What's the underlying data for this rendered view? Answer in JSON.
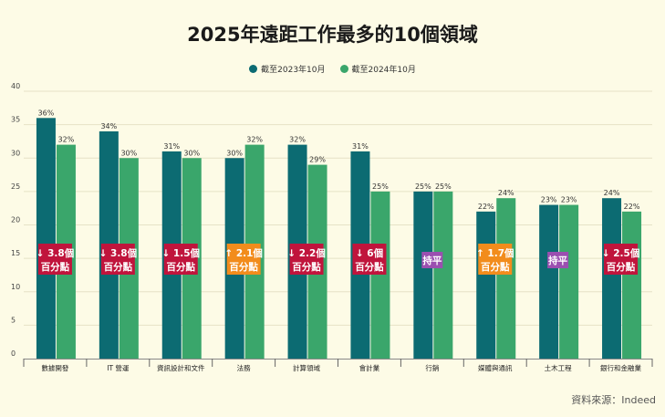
{
  "chart_data": {
    "type": "bar",
    "title": "2025年遠距工作最多的10個領域",
    "categories": [
      "數據開發",
      "IT 營運",
      "資訊設計和文件",
      "法務",
      "計算領域",
      "會計業",
      "行銷",
      "媒體與通訊",
      "土木工程",
      "銀行和金融業"
    ],
    "series": [
      {
        "name": "截至2023年10月",
        "color": "#0c6b72",
        "values": [
          36,
          34,
          31,
          30,
          32,
          31,
          25,
          22,
          23,
          24
        ]
      },
      {
        "name": "截至2024年10月",
        "color": "#3aa66b",
        "values": [
          32,
          30,
          30,
          32,
          29,
          25,
          25,
          24,
          23,
          22
        ]
      }
    ],
    "bar_labels": [
      [
        "36%",
        "34%",
        "31%",
        "30%",
        "32%",
        "31%",
        "25%",
        "22%",
        "23%",
        "24%"
      ],
      [
        "32%",
        "30%",
        "30%",
        "32%",
        "29%",
        "25%",
        "25%",
        "24%",
        "23%",
        "22%"
      ]
    ],
    "annotations": [
      {
        "line1": "↓ 3.8個",
        "line2": "百分點",
        "kind": "down"
      },
      {
        "line1": "↓ 3.8個",
        "line2": "百分點",
        "kind": "down"
      },
      {
        "line1": "↓ 1.5個",
        "line2": "百分點",
        "kind": "down"
      },
      {
        "line1": "↑ 2.1個",
        "line2": "百分點",
        "kind": "up"
      },
      {
        "line1": "↓ 2.2個",
        "line2": "百分點",
        "kind": "down"
      },
      {
        "line1": "↓ 6個",
        "line2": "百分點",
        "kind": "down"
      },
      {
        "line1": "持平",
        "line2": "",
        "kind": "flat"
      },
      {
        "line1": "↑ 1.7個",
        "line2": "百分點",
        "kind": "up"
      },
      {
        "line1": "持平",
        "line2": "",
        "kind": "flat"
      },
      {
        "line1": "↓ 2.5個",
        "line2": "百分點",
        "kind": "down"
      }
    ],
    "annotation_colors": {
      "down": "#c0143c",
      "up": "#f28c1c",
      "flat": "#9b4fb0"
    },
    "y_ticks": [
      0,
      5,
      10,
      15,
      20,
      25,
      30,
      35,
      40
    ],
    "ylim": [
      0,
      40
    ],
    "grid": true,
    "legend_position": "top-center",
    "xlabel": "",
    "ylabel": ""
  },
  "source_note": "資料來源：Indeed"
}
